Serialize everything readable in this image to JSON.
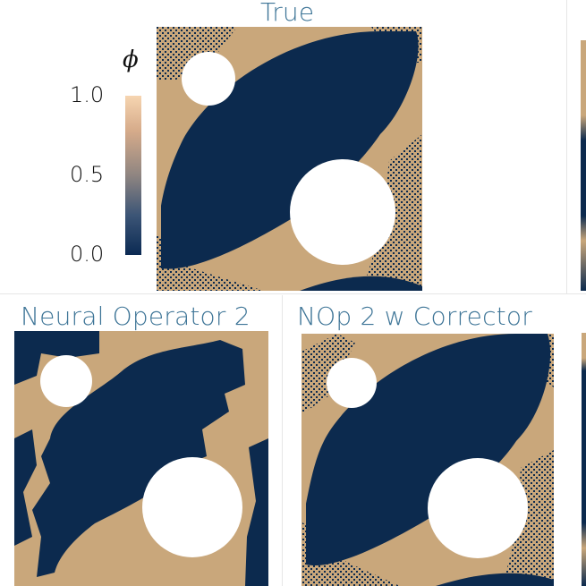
{
  "colors": {
    "phase_low": "#0c2a4e",
    "phase_high": "#c9a77b",
    "title": "#3e7597",
    "colorbar_top": "#f6d5b1",
    "colorbar_mid": "#8f8581",
    "colorbar_bottom": "#0b2a53"
  },
  "colorbar": {
    "symbol": "ϕ",
    "tick_high": "1.0",
    "tick_mid": "0.5",
    "tick_low": "0.0"
  },
  "panels": {
    "true": {
      "title": "True"
    },
    "nop2": {
      "title": "Neural Operator 2"
    },
    "nop2_corrector": {
      "title": "NOp 2 w Corrector"
    }
  }
}
